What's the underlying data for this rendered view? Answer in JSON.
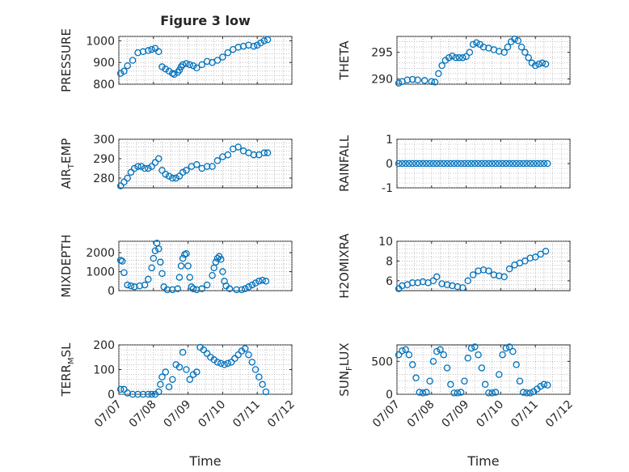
{
  "chart_data": [
    {
      "type": "scatter",
      "title": "Figure 3 low",
      "ylabel": "PRESSURE",
      "ylim": [
        800,
        1020
      ],
      "yticks": [
        800,
        900,
        1000
      ],
      "x": [
        0.05,
        0.15,
        0.25,
        0.4,
        0.55,
        0.7,
        0.85,
        0.95,
        1.05,
        1.15,
        1.25,
        1.35,
        1.45,
        1.55,
        1.6,
        1.7,
        1.75,
        1.8,
        1.85,
        1.95,
        2.05,
        2.15,
        2.25,
        2.4,
        2.55,
        2.7,
        2.85,
        3.0,
        3.15,
        3.3,
        3.45,
        3.6,
        3.75,
        3.9,
        4.0,
        4.1,
        4.2,
        4.3
      ],
      "values": [
        850,
        860,
        885,
        910,
        945,
        950,
        955,
        960,
        965,
        950,
        880,
        870,
        860,
        850,
        845,
        855,
        865,
        880,
        890,
        895,
        890,
        885,
        875,
        890,
        905,
        900,
        910,
        925,
        945,
        960,
        970,
        975,
        980,
        975,
        980,
        990,
        1000,
        1005
      ]
    },
    {
      "type": "scatter",
      "title": "",
      "ylabel": "THETA",
      "ylim": [
        289,
        298
      ],
      "yticks": [
        290,
        295
      ],
      "x": [
        0.05,
        0.15,
        0.3,
        0.45,
        0.6,
        0.8,
        1.0,
        1.1,
        1.2,
        1.3,
        1.4,
        1.5,
        1.6,
        1.7,
        1.8,
        1.9,
        2.0,
        2.1,
        2.2,
        2.3,
        2.4,
        2.5,
        2.65,
        2.8,
        2.95,
        3.1,
        3.2,
        3.3,
        3.4,
        3.5,
        3.6,
        3.7,
        3.8,
        3.9,
        4.0,
        4.1,
        4.2,
        4.3
      ],
      "values": [
        289.2,
        289.5,
        289.8,
        289.9,
        289.8,
        289.7,
        289.5,
        289.4,
        291.0,
        292.5,
        293.5,
        294.0,
        294.3,
        294.0,
        294.0,
        294.0,
        294.2,
        295.0,
        296.5,
        296.8,
        296.5,
        296.0,
        295.8,
        295.5,
        295.2,
        295.0,
        296.0,
        297.0,
        297.5,
        297.2,
        296.0,
        295.0,
        294.0,
        293.0,
        292.5,
        292.8,
        293.0,
        292.8
      ]
    },
    {
      "type": "scatter",
      "title": "",
      "ylabel": "AIR_TEMP",
      "ylim": [
        275,
        300
      ],
      "yticks": [
        280,
        290,
        300
      ],
      "x": [
        0.05,
        0.15,
        0.25,
        0.35,
        0.45,
        0.55,
        0.65,
        0.75,
        0.85,
        0.95,
        1.05,
        1.15,
        1.25,
        1.35,
        1.45,
        1.55,
        1.65,
        1.75,
        1.85,
        1.95,
        2.1,
        2.25,
        2.4,
        2.55,
        2.7,
        2.85,
        3.0,
        3.15,
        3.3,
        3.45,
        3.6,
        3.75,
        3.9,
        4.05,
        4.2,
        4.3
      ],
      "values": [
        276,
        278,
        280,
        283,
        285,
        286,
        286,
        285,
        285,
        286,
        288,
        290,
        284,
        282,
        281,
        280,
        280,
        281,
        283,
        284,
        286,
        287,
        285,
        286,
        286,
        289,
        291,
        292,
        295,
        296,
        294,
        293,
        292,
        292,
        293,
        293
      ]
    },
    {
      "type": "scatter",
      "title": "",
      "ylabel": "RAINFALL",
      "ylim": [
        -1,
        1
      ],
      "yticks": [
        -1,
        0,
        1
      ],
      "x": [
        0.05,
        0.15,
        0.25,
        0.35,
        0.45,
        0.55,
        0.65,
        0.75,
        0.85,
        0.95,
        1.05,
        1.15,
        1.25,
        1.35,
        1.45,
        1.55,
        1.65,
        1.75,
        1.85,
        1.95,
        2.05,
        2.15,
        2.25,
        2.35,
        2.45,
        2.55,
        2.65,
        2.75,
        2.85,
        2.95,
        3.05,
        3.15,
        3.25,
        3.35,
        3.45,
        3.55,
        3.65,
        3.75,
        3.85,
        3.95,
        4.05,
        4.15,
        4.25,
        4.35
      ],
      "values": [
        0,
        0,
        0,
        0,
        0,
        0,
        0,
        0,
        0,
        0,
        0,
        0,
        0,
        0,
        0,
        0,
        0,
        0,
        0,
        0,
        0,
        0,
        0,
        0,
        0,
        0,
        0,
        0,
        0,
        0,
        0,
        0,
        0,
        0,
        0,
        0,
        0,
        0,
        0,
        0,
        0,
        0,
        0,
        0
      ]
    },
    {
      "type": "scatter",
      "title": "",
      "ylabel": "MIXDEPTH",
      "ylim": [
        0,
        2600
      ],
      "yticks": [
        0,
        1000,
        2000
      ],
      "x": [
        0.05,
        0.1,
        0.15,
        0.25,
        0.35,
        0.45,
        0.6,
        0.75,
        0.85,
        0.95,
        1.0,
        1.05,
        1.1,
        1.15,
        1.2,
        1.25,
        1.3,
        1.4,
        1.55,
        1.7,
        1.75,
        1.8,
        1.85,
        1.9,
        1.95,
        2.0,
        2.05,
        2.1,
        2.15,
        2.25,
        2.4,
        2.55,
        2.7,
        2.75,
        2.8,
        2.85,
        2.9,
        2.95,
        3.0,
        3.05,
        3.1,
        3.2,
        3.4,
        3.55,
        3.65,
        3.75,
        3.85,
        3.95,
        4.05,
        4.15,
        4.25
      ],
      "values": [
        1600,
        1550,
        950,
        300,
        250,
        200,
        250,
        300,
        600,
        1200,
        1700,
        2100,
        2500,
        2200,
        1500,
        900,
        200,
        50,
        50,
        100,
        700,
        1300,
        1700,
        1900,
        1950,
        1300,
        700,
        200,
        100,
        50,
        100,
        300,
        800,
        1200,
        1500,
        1700,
        1800,
        1650,
        1000,
        500,
        250,
        100,
        50,
        50,
        100,
        200,
        300,
        400,
        500,
        550,
        500
      ]
    },
    {
      "type": "scatter",
      "title": "",
      "ylabel": "H2OMIXRA",
      "ylim": [
        5,
        10
      ],
      "yticks": [
        6,
        8,
        10
      ],
      "x": [
        0.05,
        0.15,
        0.3,
        0.45,
        0.6,
        0.75,
        0.9,
        1.05,
        1.15,
        1.3,
        1.45,
        1.6,
        1.75,
        1.9,
        2.05,
        2.2,
        2.35,
        2.5,
        2.65,
        2.8,
        2.95,
        3.1,
        3.25,
        3.4,
        3.55,
        3.7,
        3.85,
        4.0,
        4.15,
        4.3
      ],
      "values": [
        5.2,
        5.5,
        5.6,
        5.8,
        5.8,
        5.9,
        5.8,
        6.0,
        6.4,
        5.7,
        5.6,
        5.5,
        5.4,
        5.3,
        6.0,
        6.6,
        7.0,
        7.1,
        7.0,
        6.6,
        6.5,
        6.4,
        7.2,
        7.6,
        7.8,
        8.0,
        8.3,
        8.4,
        8.7,
        9.0
      ]
    },
    {
      "type": "scatter",
      "title": "",
      "ylabel": "TERR_MSL",
      "xlabel": "Time",
      "ylim": [
        0,
        200
      ],
      "yticks": [
        0,
        100,
        200
      ],
      "xticks": [
        "07/07",
        "07/08",
        "07/09",
        "07/10",
        "07/11",
        "07/12"
      ],
      "x": [
        0.05,
        0.15,
        0.25,
        0.4,
        0.55,
        0.7,
        0.85,
        0.95,
        1.05,
        1.15,
        1.2,
        1.25,
        1.35,
        1.45,
        1.55,
        1.65,
        1.75,
        1.85,
        1.95,
        2.05,
        2.15,
        2.25,
        2.35,
        2.45,
        2.55,
        2.65,
        2.75,
        2.85,
        2.95,
        3.05,
        3.15,
        3.25,
        3.35,
        3.45,
        3.55,
        3.65,
        3.75,
        3.85,
        3.95,
        4.05,
        4.15,
        4.25
      ],
      "values": [
        20,
        20,
        5,
        0,
        0,
        0,
        0,
        0,
        0,
        10,
        40,
        70,
        90,
        30,
        60,
        120,
        110,
        170,
        100,
        60,
        80,
        90,
        190,
        180,
        165,
        150,
        140,
        130,
        125,
        120,
        125,
        130,
        145,
        160,
        175,
        185,
        160,
        130,
        100,
        70,
        40,
        10
      ]
    },
    {
      "type": "scatter",
      "title": "",
      "ylabel": "SUN_FLUX",
      "xlabel": "Time",
      "ylim": [
        0,
        750
      ],
      "yticks": [
        0,
        500
      ],
      "xticks": [
        "07/07",
        "07/08",
        "07/09",
        "07/10",
        "07/11",
        "07/12"
      ],
      "x": [
        0.05,
        0.15,
        0.25,
        0.35,
        0.45,
        0.55,
        0.65,
        0.75,
        0.85,
        0.95,
        1.05,
        1.15,
        1.25,
        1.35,
        1.45,
        1.55,
        1.65,
        1.75,
        1.85,
        1.95,
        2.05,
        2.15,
        2.25,
        2.35,
        2.45,
        2.55,
        2.65,
        2.75,
        2.85,
        2.95,
        3.05,
        3.15,
        3.25,
        3.35,
        3.45,
        3.55,
        3.65,
        3.75,
        3.85,
        3.95,
        4.05,
        4.15,
        4.25,
        4.35
      ],
      "values": [
        600,
        660,
        680,
        600,
        450,
        250,
        30,
        20,
        30,
        200,
        500,
        650,
        680,
        600,
        400,
        150,
        20,
        20,
        30,
        200,
        550,
        700,
        720,
        600,
        400,
        150,
        20,
        20,
        30,
        300,
        600,
        700,
        720,
        650,
        450,
        200,
        30,
        20,
        20,
        40,
        80,
        120,
        150,
        140
      ]
    }
  ]
}
